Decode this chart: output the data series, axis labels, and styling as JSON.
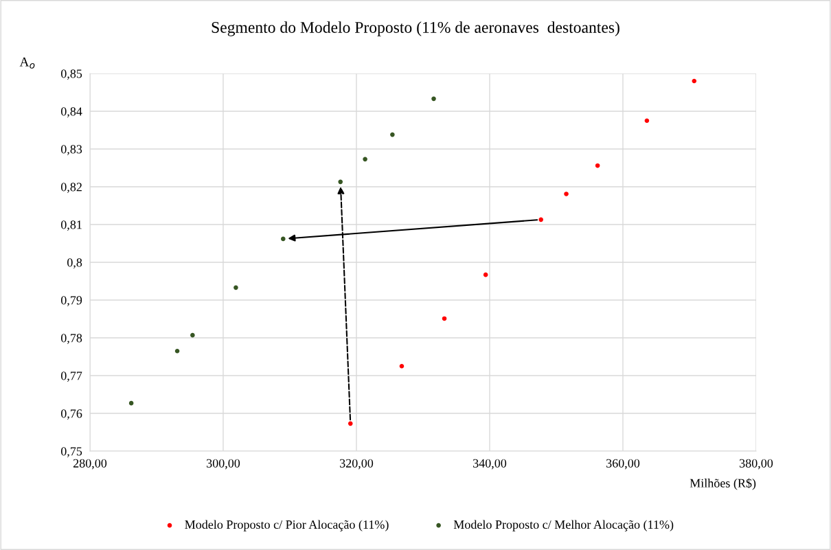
{
  "chart_data": {
    "type": "scatter",
    "title": "Segmento do Modelo Proposto (11% de aeronaves  destoantes)",
    "xlabel": "Milhões (R$)",
    "ylabel": "A$_{o}$",
    "series": [
      {
        "name": "Modelo Proposto c/ Pior Alocação (11%)",
        "color": "#ff0000",
        "x": [
          370.7,
          363.6,
          356.2,
          351.5,
          347.7,
          339.4,
          333.2,
          326.8,
          319.1
        ],
        "values": [
          0.848,
          0.8375,
          0.8256,
          0.8181,
          0.8113,
          0.7967,
          0.7851,
          0.7725,
          0.7573
        ]
      },
      {
        "name": "Modelo Proposto c/ Melhor Alocação (11%)",
        "color": "#375623",
        "x": [
          331.6,
          325.4,
          321.3,
          317.6,
          309.0,
          301.9,
          295.4,
          293.1,
          286.2
        ],
        "values": [
          0.8433,
          0.8338,
          0.8273,
          0.8213,
          0.8062,
          0.7933,
          0.7807,
          0.7765,
          0.7627
        ]
      }
    ],
    "xlim": [
      280,
      380
    ],
    "xticks": [
      {
        "value": 280,
        "label": "280,00"
      },
      {
        "value": 300,
        "label": "300,00"
      },
      {
        "value": 320,
        "label": "320,00"
      },
      {
        "value": 340,
        "label": "340,00"
      },
      {
        "value": 360,
        "label": "360,00"
      },
      {
        "value": 380,
        "label": "380,00"
      }
    ],
    "ylim": [
      0.75,
      0.85
    ],
    "yticks": [
      {
        "value": 0.75,
        "label": "0,75"
      },
      {
        "value": 0.76,
        "label": "0,76"
      },
      {
        "value": 0.77,
        "label": "0,77"
      },
      {
        "value": 0.78,
        "label": "0,78"
      },
      {
        "value": 0.79,
        "label": "0,79"
      },
      {
        "value": 0.8,
        "label": "0,8"
      },
      {
        "value": 0.81,
        "label": "0,81"
      },
      {
        "value": 0.82,
        "label": "0,82"
      },
      {
        "value": 0.83,
        "label": "0,83"
      },
      {
        "value": 0.84,
        "label": "0,84"
      },
      {
        "value": 0.85,
        "label": "0,85"
      }
    ],
    "grid": true,
    "legend": "bottom",
    "marker": "circle"
  }
}
